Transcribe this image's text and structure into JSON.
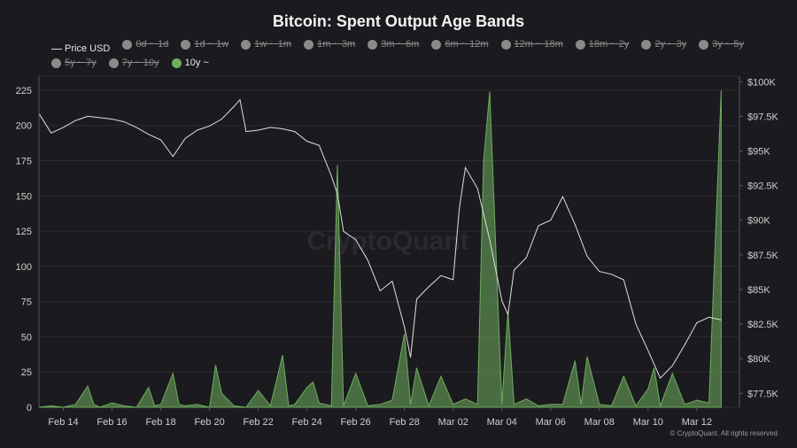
{
  "title": "Bitcoin: Spent Output Age Bands",
  "watermark": "CryptoQuant",
  "copyright": "© CryptoQuant. All rights reserved",
  "legend": [
    {
      "label": "Price USD",
      "kind": "line",
      "active": true
    },
    {
      "label": "0d ~ 1d",
      "kind": "dot",
      "active": false
    },
    {
      "label": "1d ~ 1w",
      "kind": "dot",
      "active": false
    },
    {
      "label": "1w ~ 1m",
      "kind": "dot",
      "active": false
    },
    {
      "label": "1m ~ 3m",
      "kind": "dot",
      "active": false
    },
    {
      "label": "3m ~ 6m",
      "kind": "dot",
      "active": false
    },
    {
      "label": "6m ~ 12m",
      "kind": "dot",
      "active": false
    },
    {
      "label": "12m ~ 18m",
      "kind": "dot",
      "active": false
    },
    {
      "label": "18m ~ 2y",
      "kind": "dot",
      "active": false
    },
    {
      "label": "2y ~ 3y",
      "kind": "dot",
      "active": false
    },
    {
      "label": "3y ~ 5y",
      "kind": "dot",
      "active": false
    },
    {
      "label": "5y ~ 7y",
      "kind": "dot",
      "active": false
    },
    {
      "label": "7y ~ 10y",
      "kind": "dot",
      "active": false
    },
    {
      "label": "10y ~",
      "kind": "dot",
      "active": true
    }
  ],
  "colors": {
    "background": "#1b1b1f",
    "price": "#e0e0e0",
    "band": "#6fae5f",
    "inactive": "#8a8a8a",
    "grid": "#2c2c31"
  },
  "chart_data": {
    "type": "area",
    "grid": true,
    "legend_position": "top",
    "x_start": "2025-02-13",
    "x_end": "2025-03-13",
    "x_ticks": [
      "Feb 14",
      "Feb 16",
      "Feb 18",
      "Feb 20",
      "Feb 22",
      "Feb 24",
      "Feb 26",
      "Feb 28",
      "Mar 02",
      "Mar 04",
      "Mar 06",
      "Mar 08",
      "Mar 10",
      "Mar 12"
    ],
    "y_left": {
      "ticks": [
        0,
        25,
        50,
        75,
        100,
        125,
        150,
        175,
        200,
        225
      ],
      "range": [
        0,
        235
      ]
    },
    "y_right": {
      "ticks": [
        "$77.5K",
        "$80K",
        "$82.5K",
        "$85K",
        "$87.5K",
        "$90K",
        "$92.5K",
        "$95K",
        "$97.5K",
        "$100K"
      ],
      "tick_values": [
        77500,
        80000,
        82500,
        85000,
        87500,
        90000,
        92500,
        95000,
        97500,
        100000
      ],
      "range": [
        76500,
        100400
      ]
    },
    "series": [
      {
        "name": "Price USD",
        "axis": "right",
        "points": [
          [
            "2025-02-13",
            97700
          ],
          [
            "2025-02-13T12",
            96300
          ],
          [
            "2025-02-14",
            96700
          ],
          [
            "2025-02-14T12",
            97200
          ],
          [
            "2025-02-15",
            97500
          ],
          [
            "2025-02-15T12",
            97400
          ],
          [
            "2025-02-16",
            97300
          ],
          [
            "2025-02-16T12",
            97100
          ],
          [
            "2025-02-17",
            96700
          ],
          [
            "2025-02-17T12",
            96200
          ],
          [
            "2025-02-18",
            95800
          ],
          [
            "2025-02-18T12",
            94600
          ],
          [
            "2025-02-19",
            95900
          ],
          [
            "2025-02-19T12",
            96500
          ],
          [
            "2025-02-20",
            96800
          ],
          [
            "2025-02-20T12",
            97300
          ],
          [
            "2025-02-21",
            98200
          ],
          [
            "2025-02-21T06",
            98700
          ],
          [
            "2025-02-21T12",
            96400
          ],
          [
            "2025-02-22",
            96500
          ],
          [
            "2025-02-22T12",
            96700
          ],
          [
            "2025-02-23",
            96600
          ],
          [
            "2025-02-23T12",
            96400
          ],
          [
            "2025-02-24",
            95700
          ],
          [
            "2025-02-24T12",
            95400
          ],
          [
            "2025-02-25",
            93200
          ],
          [
            "2025-02-25T06",
            91900
          ],
          [
            "2025-02-25T12",
            89200
          ],
          [
            "2025-02-26",
            88600
          ],
          [
            "2025-02-26T12",
            87100
          ],
          [
            "2025-02-27",
            84900
          ],
          [
            "2025-02-27T12",
            85600
          ],
          [
            "2025-02-28",
            82300
          ],
          [
            "2025-02-28T06",
            80100
          ],
          [
            "2025-02-28T12",
            84300
          ],
          [
            "2025-03-01",
            85200
          ],
          [
            "2025-03-01T12",
            86000
          ],
          [
            "2025-03-02",
            85700
          ],
          [
            "2025-03-02T06",
            90800
          ],
          [
            "2025-03-02T12",
            93800
          ],
          [
            "2025-03-03",
            92300
          ],
          [
            "2025-03-03T12",
            88600
          ],
          [
            "2025-03-04",
            84200
          ],
          [
            "2025-03-04T06",
            83200
          ],
          [
            "2025-03-04T12",
            86400
          ],
          [
            "2025-03-05",
            87300
          ],
          [
            "2025-03-05T12",
            89600
          ],
          [
            "2025-03-06",
            90000
          ],
          [
            "2025-03-06T12",
            91700
          ],
          [
            "2025-03-07",
            89700
          ],
          [
            "2025-03-07T12",
            87400
          ],
          [
            "2025-03-08",
            86300
          ],
          [
            "2025-03-08T12",
            86100
          ],
          [
            "2025-03-09",
            85700
          ],
          [
            "2025-03-09T12",
            82500
          ],
          [
            "2025-03-10",
            80600
          ],
          [
            "2025-03-10T12",
            78600
          ],
          [
            "2025-03-11",
            79500
          ],
          [
            "2025-03-11T12",
            81000
          ],
          [
            "2025-03-12",
            82600
          ],
          [
            "2025-03-12T12",
            83000
          ],
          [
            "2025-03-13",
            82800
          ]
        ]
      },
      {
        "name": "10y ~",
        "axis": "left",
        "points": [
          [
            "2025-02-13",
            0
          ],
          [
            "2025-02-13T12",
            1
          ],
          [
            "2025-02-14",
            0
          ],
          [
            "2025-02-14T12",
            2
          ],
          [
            "2025-02-15",
            15
          ],
          [
            "2025-02-15T06",
            2
          ],
          [
            "2025-02-15T12",
            0
          ],
          [
            "2025-02-16",
            3
          ],
          [
            "2025-02-16T12",
            1
          ],
          [
            "2025-02-17",
            0
          ],
          [
            "2025-02-17T12",
            14
          ],
          [
            "2025-02-17T18",
            1
          ],
          [
            "2025-02-18",
            2
          ],
          [
            "2025-02-18T12",
            24
          ],
          [
            "2025-02-18T18",
            2
          ],
          [
            "2025-02-19",
            1
          ],
          [
            "2025-02-19T12",
            2
          ],
          [
            "2025-02-20",
            0
          ],
          [
            "2025-02-20T06",
            30
          ],
          [
            "2025-02-20T12",
            10
          ],
          [
            "2025-02-21",
            1
          ],
          [
            "2025-02-21T12",
            0
          ],
          [
            "2025-02-22",
            12
          ],
          [
            "2025-02-22T12",
            1
          ],
          [
            "2025-02-23",
            37
          ],
          [
            "2025-02-23T06",
            1
          ],
          [
            "2025-02-23T12",
            2
          ],
          [
            "2025-02-24",
            14
          ],
          [
            "2025-02-24T06",
            18
          ],
          [
            "2025-02-24T12",
            3
          ],
          [
            "2025-02-25",
            1
          ],
          [
            "2025-02-25T06",
            172
          ],
          [
            "2025-02-25T12",
            1
          ],
          [
            "2025-02-26",
            24
          ],
          [
            "2025-02-26T12",
            1
          ],
          [
            "2025-02-27",
            2
          ],
          [
            "2025-02-27T12",
            5
          ],
          [
            "2025-02-28",
            52
          ],
          [
            "2025-02-28T06",
            2
          ],
          [
            "2025-02-28T12",
            28
          ],
          [
            "2025-03-01",
            1
          ],
          [
            "2025-03-01T12",
            22
          ],
          [
            "2025-03-02",
            2
          ],
          [
            "2025-03-02T12",
            6
          ],
          [
            "2025-03-03",
            2
          ],
          [
            "2025-03-03T06",
            175
          ],
          [
            "2025-03-03T12",
            224
          ],
          [
            "2025-03-04",
            2
          ],
          [
            "2025-03-04T06",
            68
          ],
          [
            "2025-03-04T12",
            2
          ],
          [
            "2025-03-05",
            6
          ],
          [
            "2025-03-05T12",
            1
          ],
          [
            "2025-03-06",
            2
          ],
          [
            "2025-03-06T12",
            2
          ],
          [
            "2025-03-07",
            33
          ],
          [
            "2025-03-07T06",
            2
          ],
          [
            "2025-03-07T12",
            36
          ],
          [
            "2025-03-08",
            2
          ],
          [
            "2025-03-08T12",
            1
          ],
          [
            "2025-03-09",
            22
          ],
          [
            "2025-03-09T12",
            1
          ],
          [
            "2025-03-10",
            13
          ],
          [
            "2025-03-10T06",
            28
          ],
          [
            "2025-03-10T12",
            1
          ],
          [
            "2025-03-11",
            24
          ],
          [
            "2025-03-11T12",
            2
          ],
          [
            "2025-03-12",
            5
          ],
          [
            "2025-03-12T12",
            3
          ],
          [
            "2025-03-13",
            225
          ]
        ]
      }
    ]
  }
}
